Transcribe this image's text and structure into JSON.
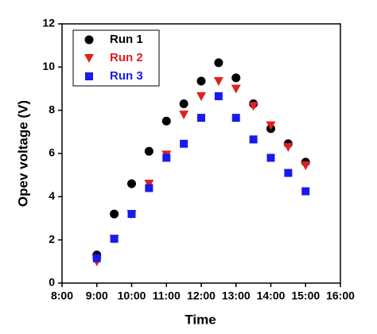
{
  "chart_data": {
    "type": "scatter",
    "x_label": "Time",
    "y_label": "Opev voltage (V)",
    "x": [
      9,
      9.5,
      10,
      10.5,
      11,
      11.5,
      12,
      12.5,
      13,
      13.5,
      14,
      14.5,
      15
    ],
    "series": [
      {
        "name": "Run 1",
        "color": "#000000",
        "marker": "circle",
        "values": [
          1.3,
          3.2,
          4.6,
          6.1,
          7.5,
          8.3,
          9.35,
          10.2,
          9.5,
          8.3,
          7.15,
          6.45,
          5.6
        ]
      },
      {
        "name": "Run 2",
        "color": "#e02020",
        "marker": "triangle-down",
        "values": [
          1.0,
          2.05,
          3.2,
          4.6,
          5.95,
          7.8,
          8.65,
          9.35,
          9.0,
          8.2,
          7.3,
          6.3,
          5.45
        ]
      },
      {
        "name": "Run 3",
        "color": "#1a1aee",
        "marker": "square",
        "values": [
          1.15,
          2.05,
          3.2,
          4.4,
          5.8,
          6.45,
          7.65,
          8.65,
          7.65,
          6.65,
          5.8,
          5.1,
          4.25
        ]
      }
    ],
    "xlim": [
      8,
      16
    ],
    "xticks": [
      {
        "value": 8,
        "label": "8:00"
      },
      {
        "value": 9,
        "label": "9:00"
      },
      {
        "value": 10,
        "label": "10:00"
      },
      {
        "value": 11,
        "label": "11:00"
      },
      {
        "value": 12,
        "label": "12:00"
      },
      {
        "value": 13,
        "label": "13:00"
      },
      {
        "value": 14,
        "label": "14:00"
      },
      {
        "value": 15,
        "label": "15:00"
      },
      {
        "value": 16,
        "label": "16:00"
      }
    ],
    "ylim": [
      0,
      12
    ],
    "yticks": [
      0,
      2,
      4,
      6,
      8,
      10,
      12
    ],
    "legend": "upper left"
  }
}
